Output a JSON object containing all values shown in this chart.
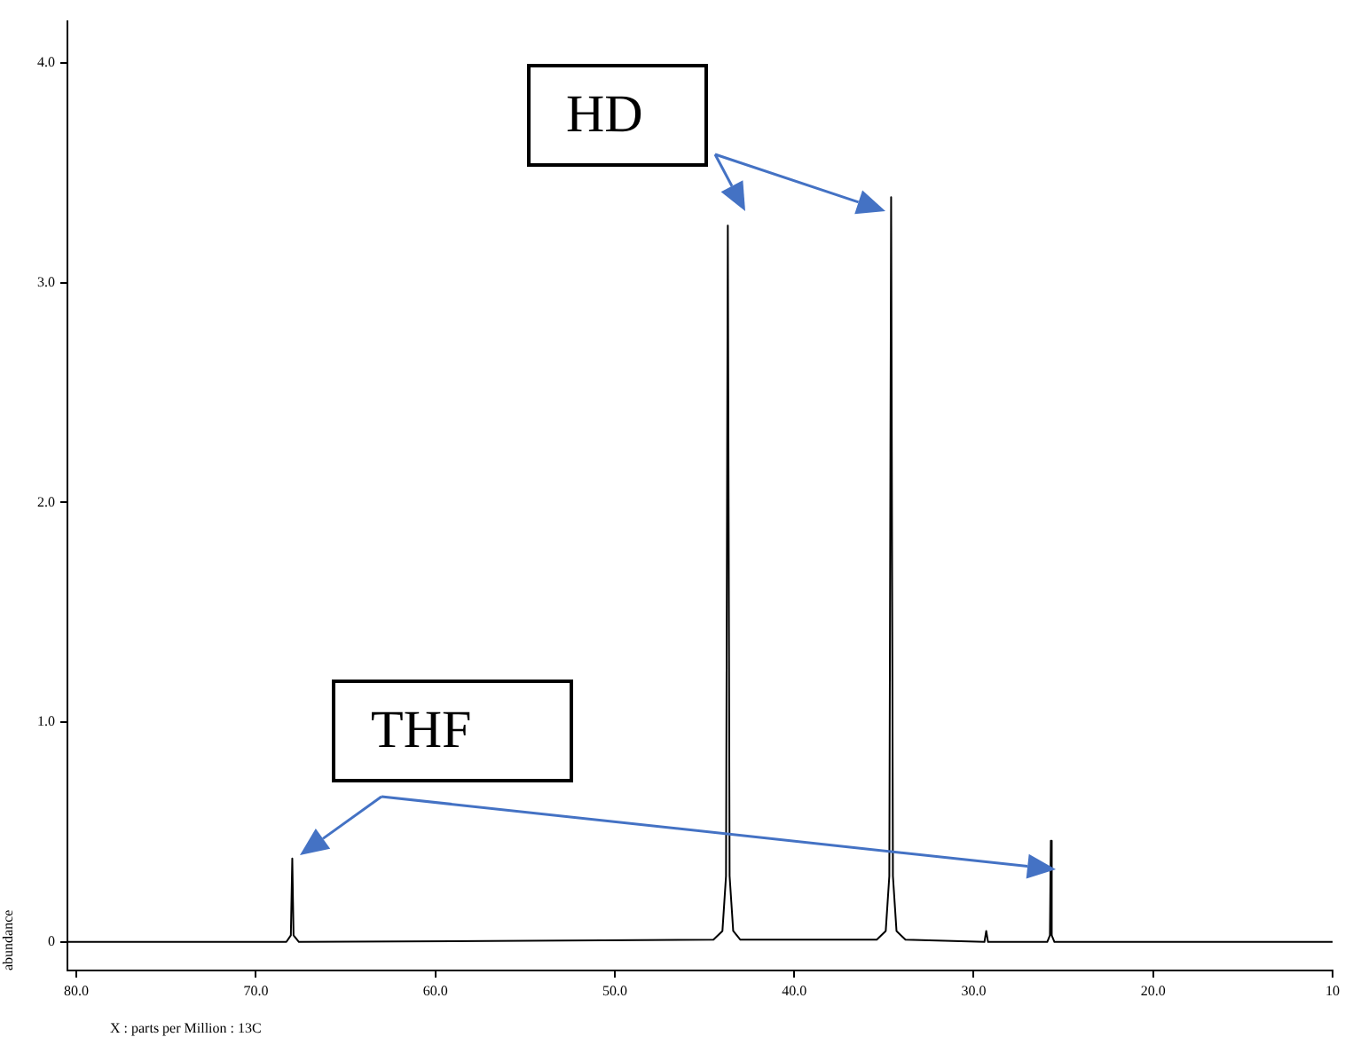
{
  "chart_data": {
    "type": "line",
    "xlabel": "X : parts per Million : 13C",
    "ylabel": "abundance",
    "annotations": [
      "HD",
      "THF"
    ],
    "x": [
      80.5,
      68.3,
      68.05,
      67.97,
      67.9,
      67.6,
      44.5,
      44.0,
      43.8,
      43.7,
      43.6,
      43.4,
      43.0,
      35.4,
      34.9,
      34.7,
      34.6,
      34.5,
      34.3,
      33.8,
      29.4,
      29.3,
      29.2,
      25.9,
      25.75,
      25.7,
      25.65,
      25.5,
      10
    ],
    "series": [
      {
        "color": "#000000",
        "values": [
          0,
          0,
          0.03,
          0.38,
          0.03,
          0,
          0.01,
          0.05,
          0.3,
          3.26,
          0.3,
          0.05,
          0.01,
          0.01,
          0.05,
          0.3,
          3.39,
          0.3,
          0.05,
          0.01,
          0,
          0.05,
          0,
          0,
          0.03,
          0.46,
          0.03,
          0,
          0
        ]
      }
    ],
    "xlim": [
      80.5,
      10
    ],
    "ylim": [
      -0.13,
      4.19
    ],
    "xticks": [
      {
        "value": 80,
        "label": "80.0"
      },
      {
        "value": 70,
        "label": "70.0"
      },
      {
        "value": 60,
        "label": "60.0"
      },
      {
        "value": 50,
        "label": "50.0"
      },
      {
        "value": 40,
        "label": "40.0"
      },
      {
        "value": 30,
        "label": "30.0"
      },
      {
        "value": 20,
        "label": "20.0"
      },
      {
        "value": 10,
        "label": "10"
      }
    ],
    "yticks": [
      0,
      {
        "value": 1,
        "label": "1.0"
      },
      {
        "value": 2,
        "label": "2.0"
      },
      {
        "value": 3,
        "label": "3.0"
      },
      {
        "value": 4,
        "label": "4.0"
      }
    ],
    "grid": false,
    "legend": false,
    "marker": "none",
    "line_style": "solid"
  }
}
